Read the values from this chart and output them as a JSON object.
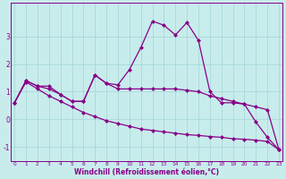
{
  "xlabel": "Windchill (Refroidissement éolien,°C)",
  "bg_color": "#c8ecec",
  "grid_color": "#a8d8d8",
  "line_color": "#880088",
  "x": [
    0,
    1,
    2,
    3,
    4,
    5,
    6,
    7,
    8,
    9,
    10,
    11,
    12,
    13,
    14,
    15,
    16,
    17,
    18,
    19,
    20,
    21,
    22,
    23
  ],
  "line1": [
    0.6,
    1.4,
    1.2,
    1.2,
    0.9,
    0.65,
    0.65,
    1.6,
    1.3,
    1.25,
    1.8,
    2.6,
    3.55,
    3.4,
    3.05,
    3.5,
    2.85,
    1.0,
    0.6,
    0.6,
    0.55,
    -0.1,
    -0.65,
    -1.1
  ],
  "line2": [
    0.6,
    1.4,
    1.2,
    1.1,
    0.9,
    0.65,
    0.65,
    1.6,
    1.3,
    1.1,
    1.1,
    1.1,
    1.1,
    1.1,
    1.1,
    1.05,
    1.0,
    0.85,
    0.75,
    0.65,
    0.55,
    0.45,
    0.35,
    -1.1
  ],
  "line3": [
    0.6,
    1.35,
    1.1,
    0.85,
    0.65,
    0.45,
    0.25,
    0.1,
    -0.05,
    -0.15,
    -0.25,
    -0.35,
    -0.4,
    -0.45,
    -0.5,
    -0.55,
    -0.58,
    -0.62,
    -0.65,
    -0.7,
    -0.72,
    -0.75,
    -0.8,
    -1.1
  ],
  "ylim": [
    -1.5,
    4.2
  ],
  "yticks": [
    -1,
    0,
    1,
    2,
    3
  ],
  "xlim": [
    -0.3,
    23.3
  ]
}
